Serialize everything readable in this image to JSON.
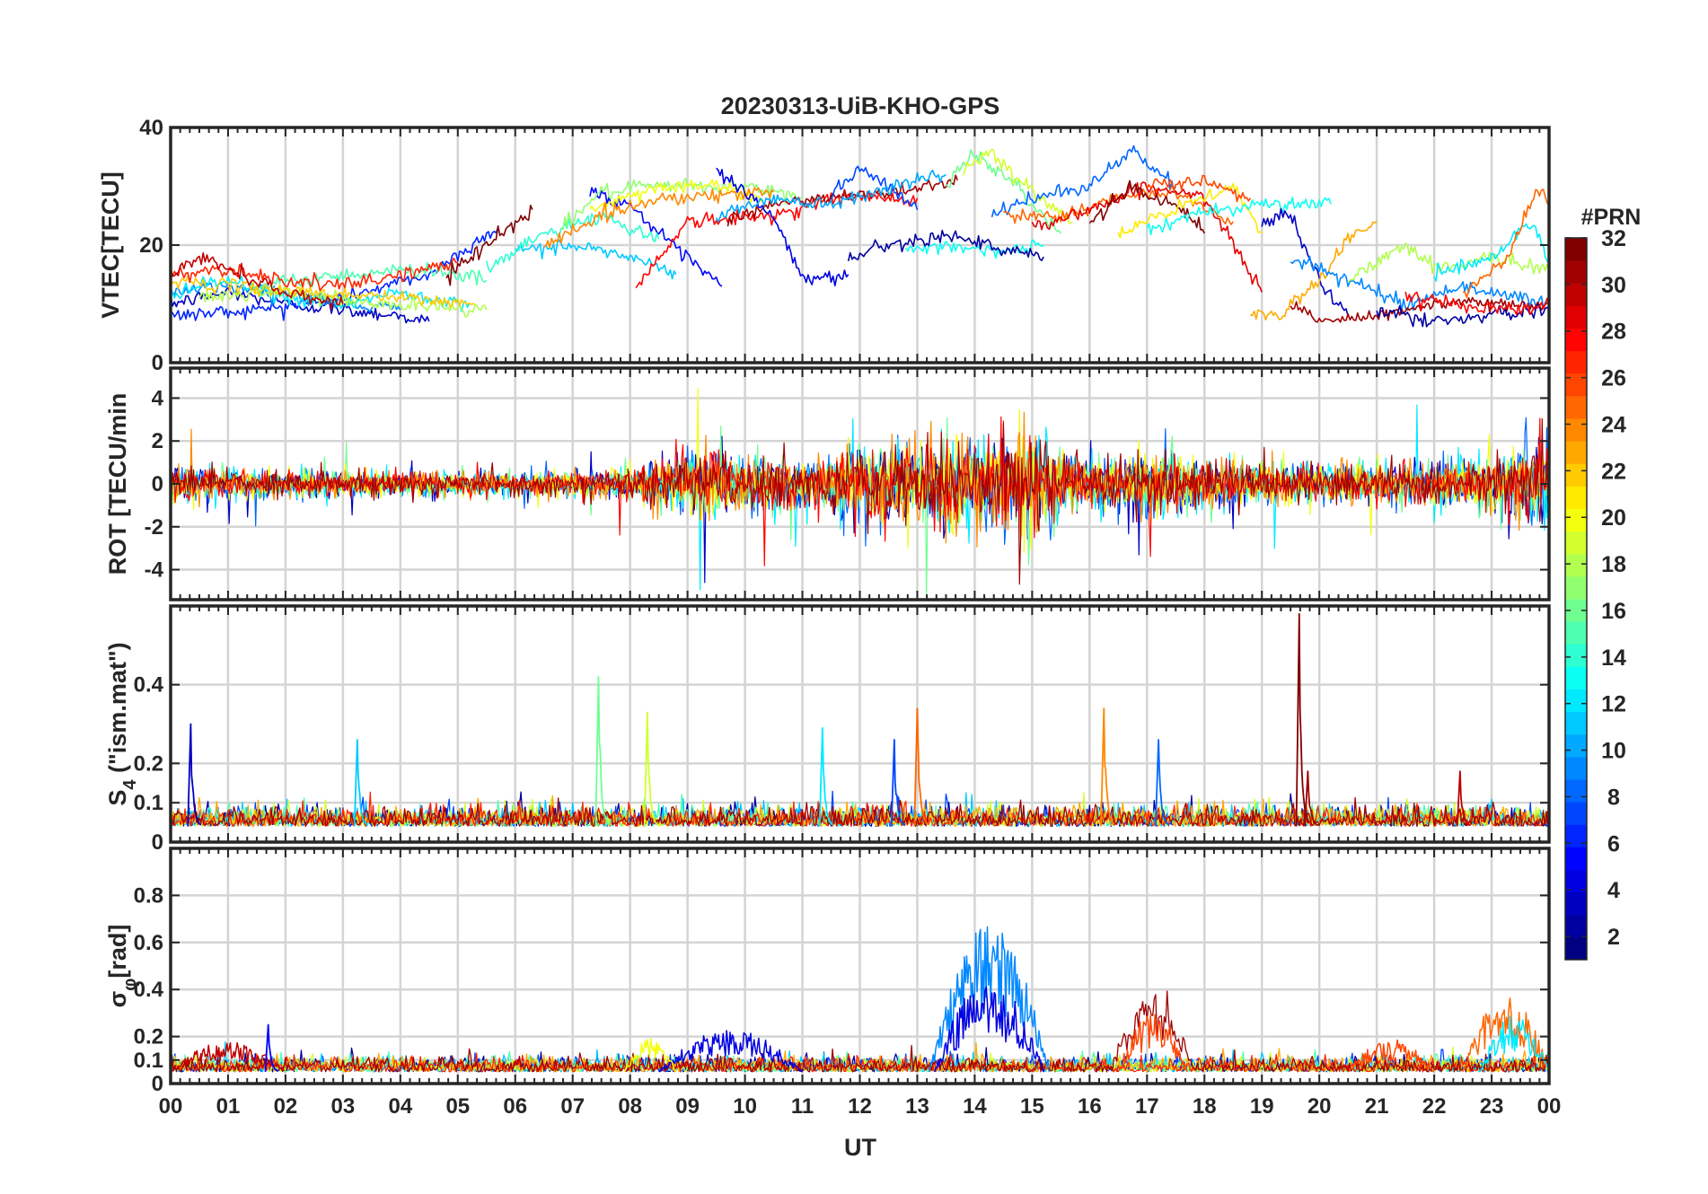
{
  "figure": {
    "title": "20230313-UiB-KHO-GPS",
    "xlabel": "UT"
  },
  "colorbar": {
    "label": "#PRN",
    "ticks": [
      "2",
      "4",
      "6",
      "8",
      "10",
      "12",
      "14",
      "16",
      "18",
      "20",
      "22",
      "24",
      "26",
      "28",
      "30",
      "32"
    ],
    "range": [
      1,
      32
    ],
    "colormap": "jet"
  },
  "chart_data": [
    {
      "type": "line",
      "ylabel": "VTEC[TECU]",
      "ylim": [
        0,
        40
      ],
      "yticks": [
        0,
        20,
        40
      ],
      "xlim": [
        0,
        24
      ],
      "xtick_labels": [
        "00",
        "01",
        "02",
        "03",
        "04",
        "05",
        "06",
        "07",
        "08",
        "09",
        "10",
        "11",
        "12",
        "13",
        "14",
        "15",
        "16",
        "17",
        "18",
        "19",
        "20",
        "21",
        "22",
        "23",
        "00"
      ],
      "grid": true,
      "series": [
        {
          "prn": 3,
          "x": [
            0,
            1,
            2,
            3,
            4,
            4.5
          ],
          "y": [
            10,
            12,
            10,
            9,
            8,
            7
          ]
        },
        {
          "prn": 6,
          "x": [
            0,
            1.5,
            3,
            4.5,
            5.7
          ],
          "y": [
            8,
            9,
            11,
            15,
            23
          ]
        },
        {
          "prn": 9,
          "x": [
            0,
            1,
            2,
            3,
            4
          ],
          "y": [
            12,
            13,
            12,
            10,
            9
          ]
        },
        {
          "prn": 12,
          "x": [
            0,
            1,
            2,
            3,
            4,
            5.2
          ],
          "y": [
            12,
            14,
            11,
            10,
            12,
            10
          ]
        },
        {
          "prn": 15,
          "x": [
            1.5,
            3,
            4.5,
            5.5
          ],
          "y": [
            13,
            15,
            16,
            14
          ]
        },
        {
          "prn": 18,
          "x": [
            0.5,
            2,
            3.5,
            5.5
          ],
          "y": [
            11,
            12,
            10,
            9
          ]
        },
        {
          "prn": 22,
          "x": [
            0,
            1,
            2.5,
            4,
            5.3
          ],
          "y": [
            14,
            13,
            12,
            11,
            10
          ]
        },
        {
          "prn": 27,
          "x": [
            0,
            1,
            2,
            3,
            4,
            5
          ],
          "y": [
            15,
            16,
            14,
            13,
            15,
            17
          ]
        },
        {
          "prn": 30,
          "x": [
            0,
            0.5,
            1,
            2,
            3
          ],
          "y": [
            15,
            18,
            16,
            12,
            10
          ]
        },
        {
          "prn": 32,
          "x": [
            4.8,
            5.5,
            6.3
          ],
          "y": [
            15,
            20,
            26
          ]
        },
        {
          "prn": 5,
          "x": [
            7.3,
            8,
            8.7,
            9.6
          ],
          "y": [
            29,
            27,
            20,
            13
          ]
        },
        {
          "prn": 11,
          "x": [
            6,
            7,
            8,
            8.8
          ],
          "y": [
            19,
            20,
            18,
            15
          ]
        },
        {
          "prn": 14,
          "x": [
            5.5,
            6.5,
            7.5,
            8.5
          ],
          "y": [
            16,
            22,
            25,
            21
          ]
        },
        {
          "prn": 17,
          "x": [
            6.8,
            7.5,
            8.5,
            10,
            11
          ],
          "y": [
            23,
            29,
            30,
            30,
            28
          ]
        },
        {
          "prn": 20,
          "x": [
            7.3,
            8.5,
            9.5,
            10.3
          ],
          "y": [
            26,
            30,
            30,
            28
          ]
        },
        {
          "prn": 24,
          "x": [
            6.5,
            7.5,
            8.5,
            10.5
          ],
          "y": [
            20,
            25,
            28,
            29
          ]
        },
        {
          "prn": 28,
          "x": [
            8.1,
            9,
            10.5,
            11.5,
            13
          ],
          "y": [
            13,
            24,
            25,
            28,
            28
          ]
        },
        {
          "prn": 31,
          "x": [
            9.7,
            10.5,
            11.5,
            12.5,
            13.7
          ],
          "y": [
            24,
            27,
            28,
            29,
            31
          ]
        },
        {
          "prn": 4,
          "x": [
            9.5,
            10.5,
            11,
            11.8
          ],
          "y": [
            33,
            25,
            14,
            15
          ]
        },
        {
          "prn": 7,
          "x": [
            11.5,
            12,
            12.5,
            13
          ],
          "y": [
            29,
            33,
            30,
            26
          ]
        },
        {
          "prn": 10,
          "x": [
            9.5,
            10.5,
            11.5,
            12.5,
            13.5
          ],
          "y": [
            25,
            28,
            27,
            30,
            32
          ]
        },
        {
          "prn": 13,
          "x": [
            12.8,
            13.5,
            14.5,
            15.2
          ],
          "y": [
            19,
            20,
            19,
            20
          ]
        },
        {
          "prn": 16,
          "x": [
            13.5,
            14,
            14.7,
            15.5
          ],
          "y": [
            30,
            36,
            30,
            22
          ]
        },
        {
          "prn": 19,
          "x": [
            13.8,
            14.3,
            15,
            15.7
          ],
          "y": [
            33,
            36,
            29,
            24
          ]
        },
        {
          "prn": 2,
          "x": [
            11.8,
            12.5,
            13.5,
            14.5,
            15.2
          ],
          "y": [
            18,
            20,
            22,
            19,
            18
          ]
        },
        {
          "prn": 8,
          "x": [
            14.3,
            15,
            16,
            16.7,
            17.5
          ],
          "y": [
            25,
            28,
            30,
            36,
            30
          ]
        },
        {
          "prn": 25,
          "x": [
            14.5,
            15.5,
            16.5,
            17.5,
            18.5
          ],
          "y": [
            25,
            25,
            28,
            29,
            24
          ]
        },
        {
          "prn": 29,
          "x": [
            15,
            16,
            17,
            18,
            19
          ],
          "y": [
            23,
            26,
            30,
            28,
            12
          ]
        },
        {
          "prn": 32,
          "x": [
            16,
            16.7,
            17.5,
            18
          ],
          "y": [
            24,
            30,
            27,
            22
          ]
        },
        {
          "prn": 21,
          "x": [
            16.5,
            17.5,
            18.5,
            19
          ],
          "y": [
            22,
            26,
            30,
            22
          ]
        },
        {
          "prn": 13,
          "x": [
            17,
            18,
            19,
            20.2
          ],
          "y": [
            22,
            26,
            27,
            27
          ]
        },
        {
          "prn": 26,
          "x": [
            17,
            18,
            18.8
          ],
          "y": [
            30,
            31,
            28
          ]
        },
        {
          "prn": 3,
          "x": [
            19,
            19.5,
            20,
            20.5
          ],
          "y": [
            24,
            25,
            14,
            8
          ]
        },
        {
          "prn": 23,
          "x": [
            18.8,
            19.3,
            20,
            20.5,
            21
          ],
          "y": [
            8,
            8,
            14,
            21,
            24
          ]
        },
        {
          "prn": 9,
          "x": [
            19.5,
            20.5,
            21.5,
            22.5,
            24
          ],
          "y": [
            18,
            14,
            10,
            13,
            10
          ]
        },
        {
          "prn": 18,
          "x": [
            20.5,
            21.5,
            22,
            23,
            24
          ],
          "y": [
            14,
            20,
            16,
            18,
            16
          ]
        },
        {
          "prn": 31,
          "x": [
            19.5,
            20,
            21,
            22,
            23,
            24
          ],
          "y": [
            10,
            7,
            8,
            10,
            10,
            10
          ]
        },
        {
          "prn": 2,
          "x": [
            21,
            22,
            23,
            24
          ],
          "y": [
            9,
            7,
            8,
            9
          ]
        },
        {
          "prn": 12,
          "x": [
            22,
            23,
            23.7,
            24
          ],
          "y": [
            15,
            18,
            24,
            17
          ]
        },
        {
          "prn": 25,
          "x": [
            22.5,
            23.3,
            23.8,
            24
          ],
          "y": [
            12,
            18,
            30,
            27
          ]
        },
        {
          "prn": 28,
          "x": [
            21.5,
            22.5,
            23.5,
            24
          ],
          "y": [
            11,
            10,
            9,
            10
          ]
        }
      ]
    },
    {
      "type": "line",
      "ylabel": "ROT [TECU/min",
      "ylim": [
        -5.4,
        5.4
      ],
      "yticks": [
        -4,
        -2,
        0,
        2,
        4
      ],
      "xlim": [
        0,
        24
      ],
      "grid": true,
      "noise_envelope": [
        {
          "x": 0,
          "amp": 1.2
        },
        {
          "x": 1,
          "amp": 1.0
        },
        {
          "x": 3,
          "amp": 0.8
        },
        {
          "x": 6,
          "amp": 0.7
        },
        {
          "x": 8,
          "amp": 1.0
        },
        {
          "x": 9.5,
          "amp": 2.2
        },
        {
          "x": 11,
          "amp": 1.5
        },
        {
          "x": 12.5,
          "amp": 2.5
        },
        {
          "x": 14,
          "amp": 3.2
        },
        {
          "x": 15,
          "amp": 3.0
        },
        {
          "x": 16,
          "amp": 1.4
        },
        {
          "x": 17,
          "amp": 2.0
        },
        {
          "x": 19,
          "amp": 1.3
        },
        {
          "x": 21,
          "amp": 1.2
        },
        {
          "x": 23,
          "amp": 1.6
        },
        {
          "x": 24,
          "amp": 3.0
        }
      ]
    },
    {
      "type": "line",
      "ylabel": "S4 (\"ism.mat\")",
      "ylabel_main": "S",
      "ylabel_sub": "4",
      "ylabel_rest": " (\"ism.mat\")",
      "ylim": [
        0,
        0.6
      ],
      "yticks": [
        0,
        0.1,
        0.2,
        0.4
      ],
      "xlim": [
        0,
        24
      ],
      "grid": true,
      "baseline": 0.04,
      "spikes": [
        {
          "x": 0.35,
          "y": 0.3,
          "prn": 3
        },
        {
          "x": 3.25,
          "y": 0.26,
          "prn": 11
        },
        {
          "x": 7.45,
          "y": 0.42,
          "prn": 16
        },
        {
          "x": 8.3,
          "y": 0.33,
          "prn": 19
        },
        {
          "x": 11.35,
          "y": 0.29,
          "prn": 12
        },
        {
          "x": 12.6,
          "y": 0.26,
          "prn": 7
        },
        {
          "x": 13.0,
          "y": 0.34,
          "prn": 25
        },
        {
          "x": 16.25,
          "y": 0.34,
          "prn": 24
        },
        {
          "x": 17.2,
          "y": 0.26,
          "prn": 8
        },
        {
          "x": 19.65,
          "y": 0.58,
          "prn": 32
        },
        {
          "x": 19.8,
          "y": 0.18,
          "prn": 31
        },
        {
          "x": 22.45,
          "y": 0.18,
          "prn": 30
        }
      ]
    },
    {
      "type": "line",
      "ylabel": "σφ[rad]",
      "ylabel_main": "σ",
      "ylabel_sub": "φ",
      "ylabel_rest": "[rad]",
      "ylim": [
        0,
        1
      ],
      "yticks": [
        0,
        0.1,
        0.2,
        0.4,
        0.6,
        0.8
      ],
      "xlim": [
        0,
        24
      ],
      "grid": true,
      "baseline": 0.05,
      "bursts": [
        {
          "x0": 13.2,
          "x1": 15.3,
          "peak": 0.62,
          "prn": 9
        },
        {
          "x0": 13.3,
          "x1": 15.2,
          "peak": 0.4,
          "prn": 4
        },
        {
          "x0": 16.4,
          "x1": 17.8,
          "peak": 0.32,
          "prn": 31
        },
        {
          "x0": 16.5,
          "x1": 17.7,
          "peak": 0.26,
          "prn": 26
        },
        {
          "x0": 8.5,
          "x1": 11.0,
          "peak": 0.18,
          "prn": 4
        },
        {
          "x0": 7.9,
          "x1": 8.8,
          "peak": 0.16,
          "prn": 20
        },
        {
          "x0": 22.5,
          "x1": 24.0,
          "peak": 0.34,
          "prn": 25
        },
        {
          "x0": 22.8,
          "x1": 24.0,
          "peak": 0.24,
          "prn": 12
        },
        {
          "x0": 0.0,
          "x1": 2.0,
          "peak": 0.13,
          "prn": 30
        },
        {
          "x0": 20.5,
          "x1": 22.0,
          "peak": 0.14,
          "prn": 26
        }
      ],
      "spikes": [
        {
          "x": 1.7,
          "y": 0.25,
          "prn": 5
        }
      ]
    }
  ]
}
